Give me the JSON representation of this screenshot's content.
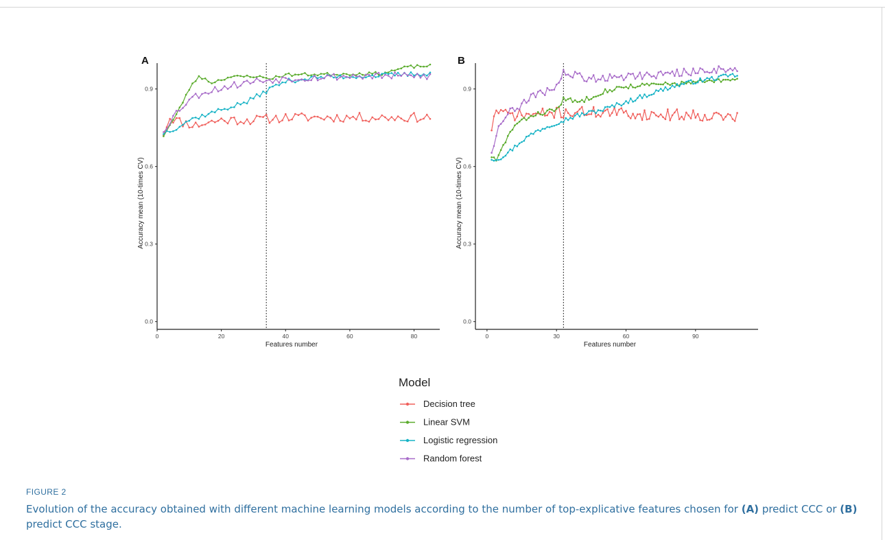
{
  "figure": {
    "label": "FIGURE 2",
    "caption": {
      "part1": "Evolution of the accuracy obtained with different machine learning models according to the number of top-explicative features chosen for ",
      "a_ref": "(A)",
      "part2": " predict CCC or ",
      "b_ref": "(B)",
      "part3": " predict CCC stage."
    }
  },
  "legend": {
    "title": "Model",
    "position": "bottom"
  },
  "colors": {
    "Decision tree": "#f0605c",
    "Linear SVM": "#5aab2c",
    "Logistic regression": "#17b3c6",
    "Random forest": "#a86cc9"
  },
  "chart_data": [
    {
      "panel": "A",
      "type": "line",
      "xlabel": "Features number",
      "ylabel": "Accuracy mean (10-times CV)",
      "xlim": [
        0,
        88
      ],
      "ylim": [
        -0.03,
        1.0
      ],
      "xticks": [
        0,
        20,
        40,
        60,
        80
      ],
      "yticks": [
        "0.0",
        "0.3",
        "0.6",
        "0.9"
      ],
      "vline": 34,
      "x_range": [
        2,
        85
      ],
      "series": [
        {
          "name": "Decision tree",
          "anchors": [
            [
              2,
              0.73
            ],
            [
              4,
              0.79
            ],
            [
              8,
              0.77
            ],
            [
              12,
              0.76
            ],
            [
              20,
              0.78
            ],
            [
              30,
              0.78
            ],
            [
              40,
              0.79
            ],
            [
              60,
              0.79
            ],
            [
              85,
              0.79
            ]
          ],
          "noise": 0.018,
          "seed": 11
        },
        {
          "name": "Linear SVM",
          "anchors": [
            [
              2,
              0.72
            ],
            [
              6,
              0.8
            ],
            [
              10,
              0.9
            ],
            [
              13,
              0.95
            ],
            [
              17,
              0.925
            ],
            [
              22,
              0.945
            ],
            [
              30,
              0.95
            ],
            [
              35,
              0.94
            ],
            [
              40,
              0.955
            ],
            [
              70,
              0.96
            ],
            [
              78,
              0.985
            ],
            [
              85,
              0.99
            ]
          ],
          "noise": 0.006,
          "seed": 23
        },
        {
          "name": "Logistic regression",
          "anchors": [
            [
              2,
              0.73
            ],
            [
              6,
              0.75
            ],
            [
              10,
              0.78
            ],
            [
              15,
              0.8
            ],
            [
              20,
              0.82
            ],
            [
              28,
              0.85
            ],
            [
              35,
              0.9
            ],
            [
              40,
              0.93
            ],
            [
              50,
              0.945
            ],
            [
              65,
              0.95
            ],
            [
              85,
              0.96
            ]
          ],
          "noise": 0.009,
          "seed": 37
        },
        {
          "name": "Random forest",
          "anchors": [
            [
              2,
              0.74
            ],
            [
              6,
              0.81
            ],
            [
              10,
              0.86
            ],
            [
              15,
              0.89
            ],
            [
              22,
              0.91
            ],
            [
              30,
              0.93
            ],
            [
              40,
              0.94
            ],
            [
              60,
              0.95
            ],
            [
              85,
              0.95
            ]
          ],
          "noise": 0.014,
          "seed": 53
        }
      ]
    },
    {
      "panel": "B",
      "type": "line",
      "xlabel": "Features number",
      "ylabel": "Accuracy mean (10-times CV)",
      "xlim": [
        -5,
        117
      ],
      "ylim": [
        -0.03,
        1.0
      ],
      "xticks": [
        0,
        30,
        60,
        90
      ],
      "yticks": [
        "0.0",
        "0.3",
        "0.6",
        "0.9"
      ],
      "vline": 33,
      "x_range": [
        2,
        108
      ],
      "series": [
        {
          "name": "Decision tree",
          "anchors": [
            [
              2,
              0.75
            ],
            [
              4,
              0.82
            ],
            [
              8,
              0.8
            ],
            [
              20,
              0.8
            ],
            [
              33,
              0.81
            ],
            [
              50,
              0.81
            ],
            [
              70,
              0.8
            ],
            [
              90,
              0.8
            ],
            [
              108,
              0.79
            ]
          ],
          "noise": 0.022,
          "seed": 71
        },
        {
          "name": "Linear SVM",
          "anchors": [
            [
              2,
              0.64
            ],
            [
              4,
              0.62
            ],
            [
              8,
              0.7
            ],
            [
              12,
              0.76
            ],
            [
              20,
              0.8
            ],
            [
              30,
              0.82
            ],
            [
              33,
              0.86
            ],
            [
              40,
              0.85
            ],
            [
              50,
              0.89
            ],
            [
              60,
              0.91
            ],
            [
              80,
              0.92
            ],
            [
              108,
              0.935
            ]
          ],
          "noise": 0.009,
          "seed": 83
        },
        {
          "name": "Logistic regression",
          "anchors": [
            [
              2,
              0.63
            ],
            [
              5,
              0.63
            ],
            [
              10,
              0.66
            ],
            [
              15,
              0.7
            ],
            [
              22,
              0.74
            ],
            [
              30,
              0.77
            ],
            [
              40,
              0.8
            ],
            [
              50,
              0.82
            ],
            [
              60,
              0.85
            ],
            [
              70,
              0.88
            ],
            [
              80,
              0.91
            ],
            [
              90,
              0.93
            ],
            [
              108,
              0.955
            ]
          ],
          "noise": 0.009,
          "seed": 97
        },
        {
          "name": "Random forest",
          "anchors": [
            [
              2,
              0.66
            ],
            [
              6,
              0.78
            ],
            [
              10,
              0.81
            ],
            [
              20,
              0.87
            ],
            [
              30,
              0.91
            ],
            [
              33,
              0.96
            ],
            [
              45,
              0.94
            ],
            [
              60,
              0.95
            ],
            [
              80,
              0.96
            ],
            [
              100,
              0.975
            ],
            [
              108,
              0.98
            ]
          ],
          "noise": 0.016,
          "seed": 109
        }
      ]
    }
  ]
}
